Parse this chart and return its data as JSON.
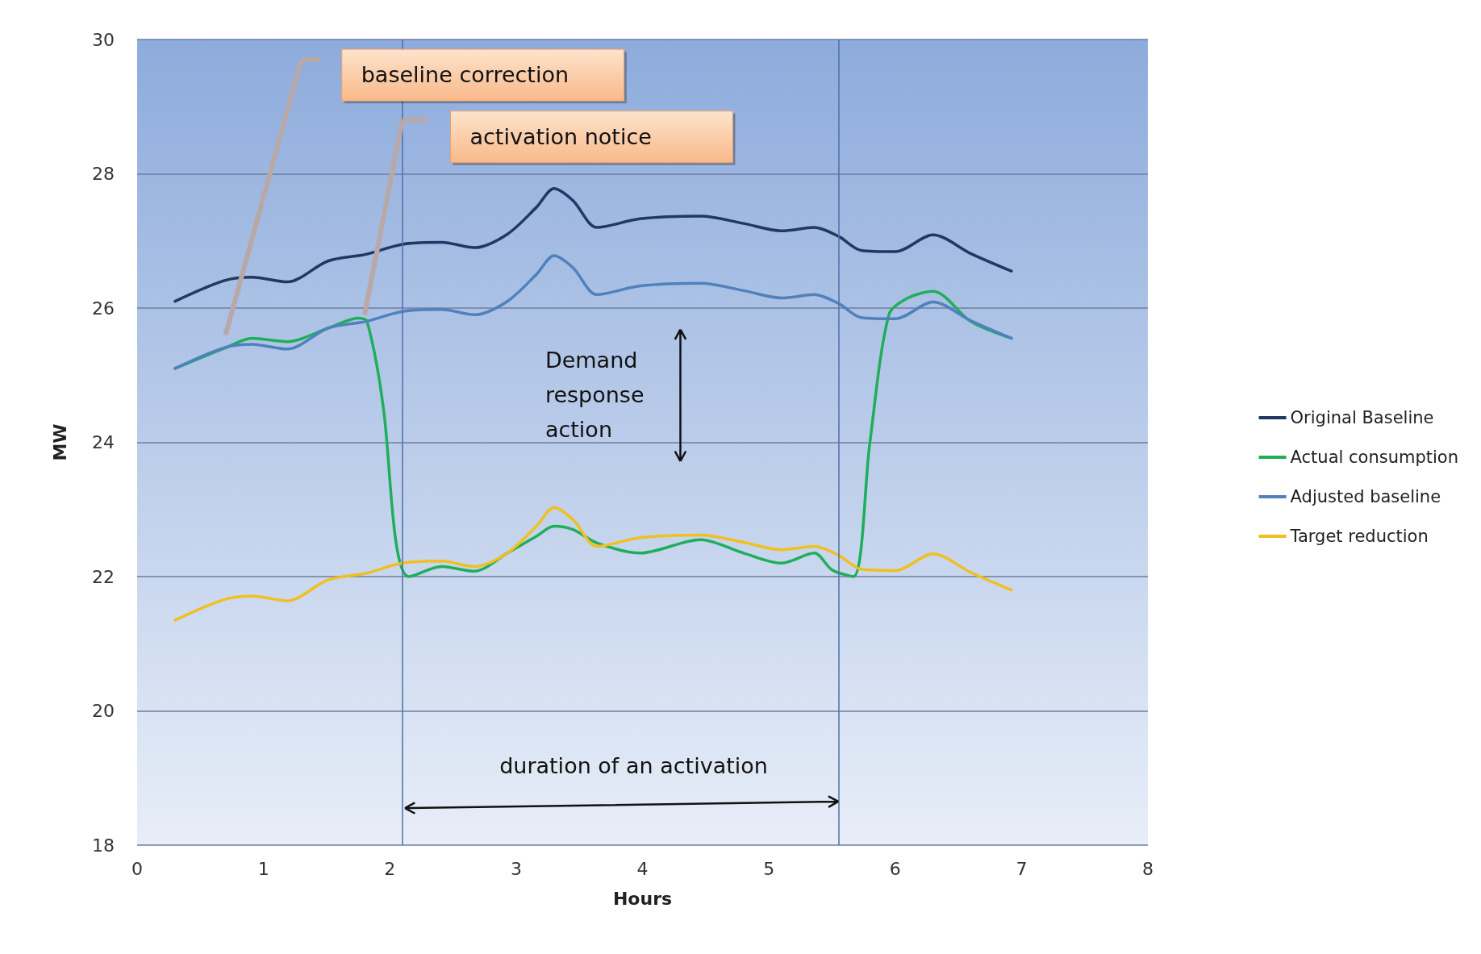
{
  "chart_data": {
    "type": "line",
    "xlabel": "Hours",
    "ylabel": "MW",
    "x": [
      0.3,
      0.69,
      0.91,
      1.19,
      1.51,
      1.81,
      2.1,
      2.41,
      2.67,
      2.93,
      3.16,
      3.3,
      3.45,
      3.64,
      3.98,
      4.46,
      4.8,
      5.1,
      5.36,
      5.55,
      5.73,
      6.0,
      6.3,
      6.6,
      6.92
    ],
    "series": [
      {
        "name": "Original Baseline",
        "color": "#1f3864",
        "values": [
          26.1,
          26.41,
          26.46,
          26.39,
          26.7,
          26.8,
          26.95,
          26.98,
          26.9,
          27.1,
          27.5,
          27.78,
          27.6,
          27.2,
          27.33,
          27.37,
          27.26,
          27.15,
          27.2,
          27.07,
          26.86,
          26.84,
          27.09,
          26.81,
          26.55
        ]
      },
      {
        "name": "Actual consumption",
        "color": "#1fae5a",
        "x": [
          0.3,
          0.69,
          0.91,
          1.19,
          1.51,
          1.75,
          1.82,
          1.95,
          2.05,
          2.15,
          2.41,
          2.67,
          2.93,
          3.16,
          3.3,
          3.45,
          3.64,
          3.98,
          4.46,
          4.8,
          5.1,
          5.36,
          5.5,
          5.67,
          5.8,
          5.95,
          6.1,
          6.3,
          6.6,
          6.92
        ],
        "values": [
          25.1,
          25.4,
          25.55,
          25.5,
          25.7,
          25.85,
          25.8,
          24.5,
          22.5,
          22.0,
          22.15,
          22.08,
          22.35,
          22.6,
          22.75,
          22.7,
          22.5,
          22.35,
          22.55,
          22.35,
          22.2,
          22.35,
          22.1,
          22.0,
          24.0,
          25.9,
          26.15,
          26.25,
          25.8,
          25.55
        ]
      },
      {
        "name": "Adjusted baseline",
        "color": "#4f81bd",
        "values": [
          25.1,
          25.41,
          25.46,
          25.39,
          25.7,
          25.8,
          25.95,
          25.98,
          25.9,
          26.1,
          26.5,
          26.78,
          26.6,
          26.2,
          26.33,
          26.37,
          26.26,
          26.15,
          26.2,
          26.07,
          25.86,
          25.84,
          26.09,
          25.81,
          25.55
        ]
      },
      {
        "name": "Target reduction",
        "color": "#f0c020",
        "values": [
          21.35,
          21.66,
          21.71,
          21.64,
          21.95,
          22.05,
          22.2,
          22.23,
          22.15,
          22.35,
          22.75,
          23.03,
          22.85,
          22.45,
          22.58,
          22.62,
          22.51,
          22.4,
          22.45,
          22.32,
          22.11,
          22.09,
          22.34,
          22.06,
          21.8
        ]
      }
    ],
    "xlim": [
      0,
      8
    ],
    "xticks": [
      0,
      1,
      2,
      3,
      4,
      5,
      6,
      7,
      8
    ],
    "ylim": [
      18,
      30
    ],
    "yticks": [
      18,
      20,
      22,
      24,
      26,
      28,
      30
    ],
    "grid": "y",
    "legend": "right",
    "line_style": "solid",
    "ref_lines": [
      {
        "axis": "x",
        "value": 2.1,
        "color": "#4f6fa8"
      },
      {
        "axis": "x",
        "value": 5.55,
        "color": "#4f6fa8"
      }
    ],
    "annotations": [
      "baseline correction",
      "activation notice",
      "Demand response action",
      "duration of an activation"
    ]
  }
}
